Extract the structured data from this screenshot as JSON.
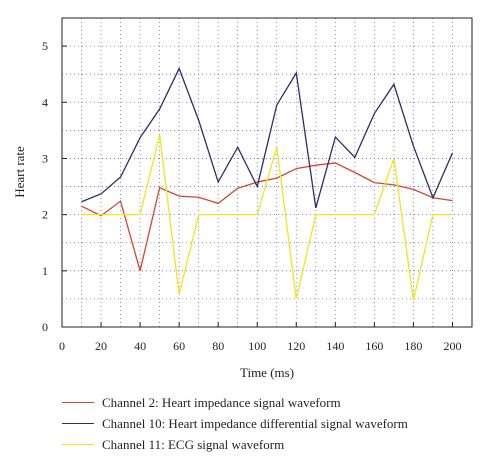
{
  "chart_data": {
    "type": "line",
    "xlabel": "Time (ms)",
    "ylabel": "Heart rate",
    "xlim": [
      0,
      210
    ],
    "ylim": [
      0,
      5.5
    ],
    "xticks": [
      0,
      20,
      40,
      60,
      80,
      100,
      120,
      140,
      160,
      180,
      200
    ],
    "yticks": [
      0,
      1,
      2,
      3,
      4,
      5
    ],
    "grid": true,
    "legend_position": "bottom",
    "x": [
      10,
      20,
      30,
      40,
      50,
      60,
      70,
      80,
      90,
      100,
      110,
      120,
      130,
      140,
      150,
      160,
      170,
      180,
      190,
      200
    ],
    "series": [
      {
        "name": "Channel 2: Heart impedance signal waveform",
        "color": "#d1492b",
        "values": [
          2.15,
          1.98,
          2.24,
          1.0,
          2.48,
          2.33,
          2.31,
          2.2,
          2.47,
          2.58,
          2.65,
          2.82,
          2.88,
          2.92,
          2.75,
          2.57,
          2.53,
          2.45,
          2.3,
          2.25
        ]
      },
      {
        "name": "Channel 10: Heart impedance differential signal waveform",
        "color": "#2e2c6b",
        "values": [
          2.23,
          2.37,
          2.67,
          3.37,
          3.88,
          4.6,
          3.68,
          2.58,
          3.2,
          2.5,
          3.95,
          4.52,
          2.12,
          3.38,
          3.02,
          3.8,
          4.32,
          3.22,
          2.3,
          3.1
        ]
      },
      {
        "name": "Channel 11: ECG signal waveform",
        "color": "#f2e41d",
        "values": [
          2.0,
          2.0,
          2.0,
          2.0,
          3.42,
          0.58,
          2.0,
          2.0,
          2.0,
          2.0,
          3.2,
          0.5,
          2.0,
          2.0,
          2.0,
          2.0,
          3.0,
          0.48,
          2.0,
          2.0
        ]
      }
    ]
  }
}
